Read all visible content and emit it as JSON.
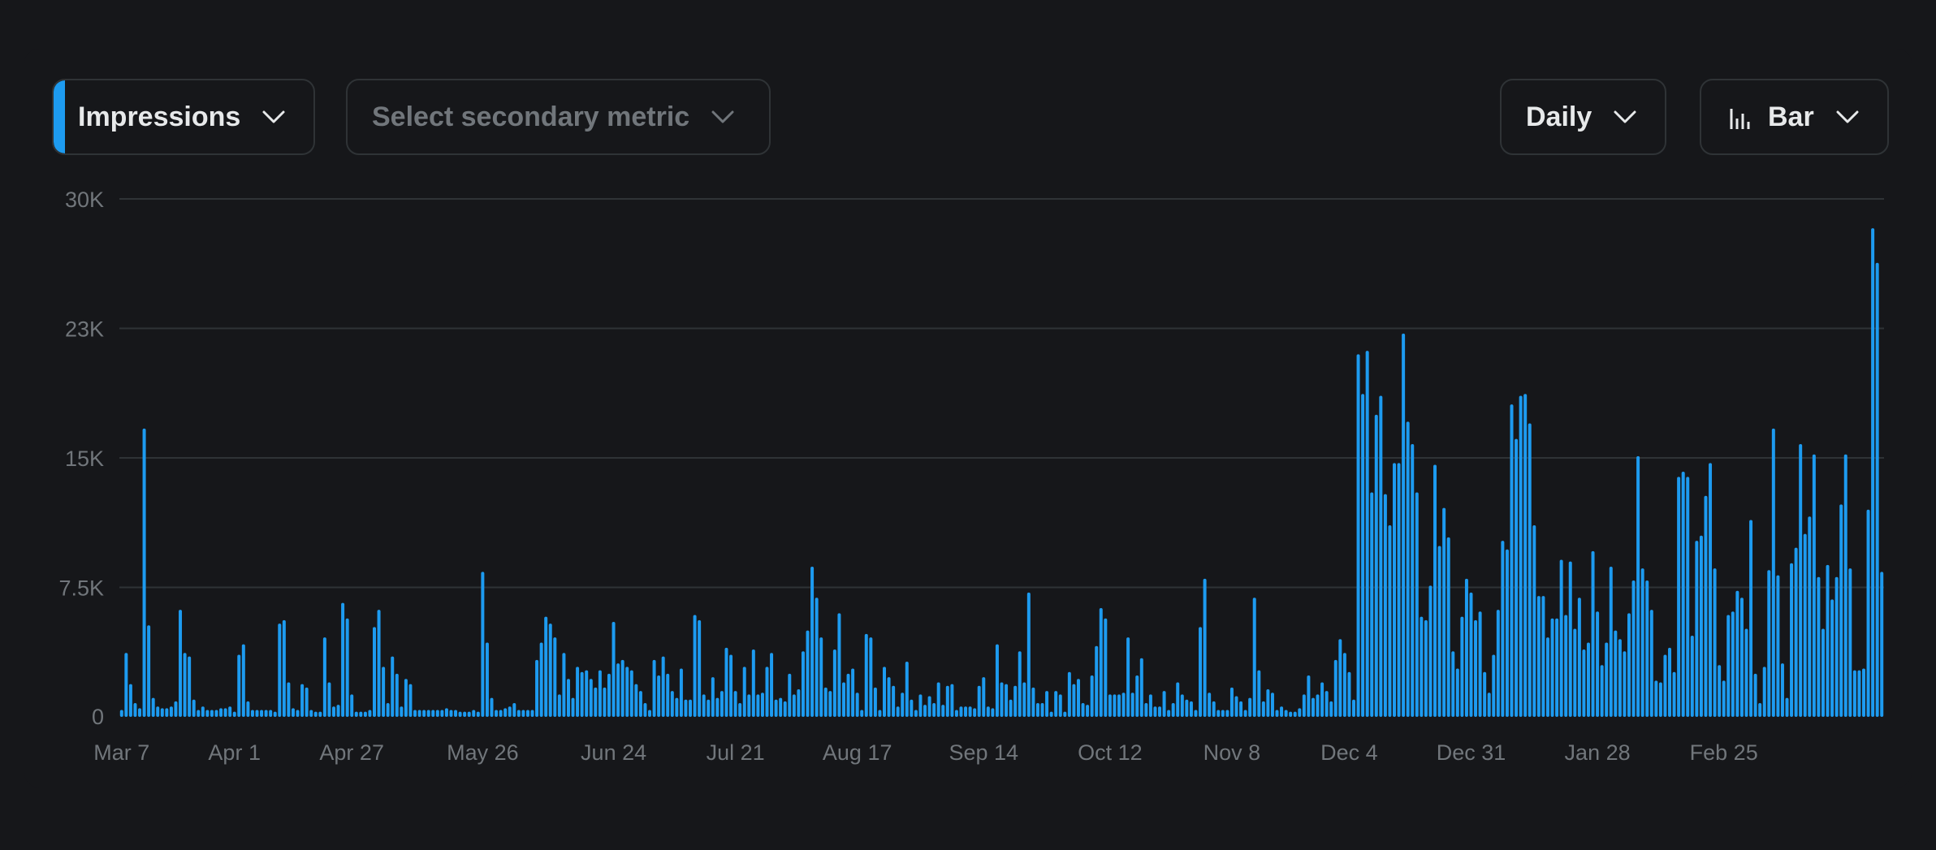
{
  "controls": {
    "primary_metric": "Impressions",
    "secondary_metric_placeholder": "Select secondary metric",
    "interval": "Daily",
    "chart_type": "Bar"
  },
  "colors": {
    "background": "#16171a",
    "bar": "#1d9bf0",
    "accent": "#1d9bf0",
    "grid": "#2f3336",
    "tick_text": "#71767b",
    "control_text": "#e7e9ea"
  },
  "chart_data": {
    "type": "bar",
    "y_ticks": [
      {
        "value": 0,
        "label": "0"
      },
      {
        "value": 7500,
        "label": "7.5K"
      },
      {
        "value": 15000,
        "label": "15K"
      },
      {
        "value": 22500,
        "label": "23K"
      },
      {
        "value": 30000,
        "label": "30K"
      }
    ],
    "x_ticks": [
      {
        "index": 0,
        "label": "Mar 7"
      },
      {
        "index": 25,
        "label": "Apr 1"
      },
      {
        "index": 51,
        "label": "Apr 27"
      },
      {
        "index": 80,
        "label": "May 26"
      },
      {
        "index": 109,
        "label": "Jun 24"
      },
      {
        "index": 136,
        "label": "Jul 21"
      },
      {
        "index": 163,
        "label": "Aug 17"
      },
      {
        "index": 191,
        "label": "Sep 14"
      },
      {
        "index": 219,
        "label": "Oct 12"
      },
      {
        "index": 246,
        "label": "Nov 8"
      },
      {
        "index": 272,
        "label": "Dec 4"
      },
      {
        "index": 299,
        "label": "Dec 31"
      },
      {
        "index": 327,
        "label": "Jan 28"
      },
      {
        "index": 355,
        "label": "Feb 25"
      }
    ],
    "ylim": [
      0,
      30000
    ],
    "grid": true,
    "series": [
      {
        "values": [
          400,
          3700,
          1900,
          800,
          500,
          16700,
          5300,
          1100,
          600,
          500,
          500,
          600,
          900,
          6200,
          3700,
          3500,
          1000,
          400,
          600,
          400,
          400,
          400,
          500,
          500,
          600,
          300,
          3600,
          4200,
          900,
          400,
          400,
          400,
          400,
          400,
          300,
          5400,
          5600,
          2000,
          500,
          400,
          1900,
          1700,
          400,
          300,
          300,
          4600,
          2000,
          600,
          700,
          6600,
          5700,
          1300,
          300,
          300,
          300,
          400,
          5200,
          6200,
          2900,
          800,
          3500,
          2500,
          600,
          2200,
          1900,
          400,
          400,
          400,
          400,
          400,
          400,
          400,
          500,
          400,
          400,
          300,
          300,
          300,
          400,
          300,
          8400,
          4300,
          1100,
          400,
          400,
          500,
          600,
          800,
          400,
          400,
          400,
          400,
          3300,
          4300,
          5800,
          5400,
          4600,
          1300,
          3700,
          2200,
          1100,
          2900,
          2600,
          2700,
          2200,
          1700,
          2700,
          1700,
          2500,
          5500,
          3100,
          3300,
          2900,
          2700,
          1900,
          1500,
          800,
          400,
          3300,
          2400,
          3500,
          2500,
          1500,
          1100,
          2800,
          1000,
          1000,
          5900,
          5600,
          1300,
          1000,
          2300,
          1100,
          1500,
          4000,
          3600,
          1500,
          800,
          2900,
          1300,
          3900,
          1300,
          1400,
          2900,
          3700,
          1000,
          1100,
          900,
          2500,
          1300,
          1600,
          3800,
          5000,
          8700,
          6900,
          4600,
          1700,
          1500,
          3900,
          6000,
          2000,
          2500,
          2800,
          1400,
          400,
          4800,
          4600,
          1700,
          400,
          2900,
          2300,
          1800,
          600,
          1400,
          3200,
          1000,
          400,
          1300,
          700,
          1200,
          800,
          2000,
          700,
          1800,
          1900,
          400,
          600,
          600,
          600,
          500,
          1800,
          2300,
          600,
          500,
          4200,
          2000,
          1900,
          1000,
          1800,
          3800,
          2000,
          7200,
          1700,
          800,
          800,
          1500,
          300,
          1500,
          1300,
          300,
          2600,
          1900,
          2200,
          800,
          700,
          2400,
          4100,
          6300,
          5700,
          1300,
          1300,
          1300,
          1400,
          4600,
          1400,
          2400,
          3400,
          800,
          1300,
          600,
          600,
          1500,
          400,
          800,
          2000,
          1300,
          1000,
          900,
          400,
          5200,
          8000,
          1400,
          900,
          400,
          400,
          400,
          1700,
          1200,
          900,
          400,
          1100,
          6900,
          2700,
          900,
          1600,
          1400,
          400,
          600,
          400,
          300,
          300,
          500,
          1300,
          2400,
          1100,
          1300,
          2000,
          1500,
          900,
          3300,
          4500,
          3700,
          2600,
          1000,
          21000,
          18700,
          21200,
          13000,
          17500,
          18600,
          12900,
          11100,
          14700,
          14700,
          22200,
          17100,
          15800,
          13000,
          5800,
          5600,
          7600,
          14600,
          9900,
          12100,
          10400,
          3800,
          2800,
          5800,
          8000,
          7200,
          5600,
          6100,
          2600,
          1400,
          3600,
          6200,
          10200,
          9700,
          18100,
          16100,
          18600,
          18700,
          17000,
          11100,
          7000,
          7000,
          4600,
          5700,
          5700,
          9100,
          5900,
          9000,
          5100,
          6900,
          3900,
          4300,
          9600,
          6100,
          3000,
          4300,
          8700,
          5000,
          4500,
          3800,
          6000,
          7900,
          15100,
          8600,
          7900,
          6200,
          2100,
          2000,
          3600,
          4000,
          2600,
          13900,
          14200,
          13900,
          4700,
          10200,
          10500,
          12800,
          14700,
          8600,
          3000,
          2100,
          5900,
          6100,
          7300,
          6900,
          5100,
          11400,
          2500,
          800,
          2900,
          8500,
          16700,
          8200,
          3100,
          1100,
          8900,
          9800,
          15800,
          10600,
          11600,
          15200,
          8100,
          5100,
          8800,
          6800,
          8100,
          12300,
          15200,
          8600,
          2700,
          2700,
          2800,
          12000,
          28300,
          26300,
          8400
        ]
      }
    ]
  }
}
